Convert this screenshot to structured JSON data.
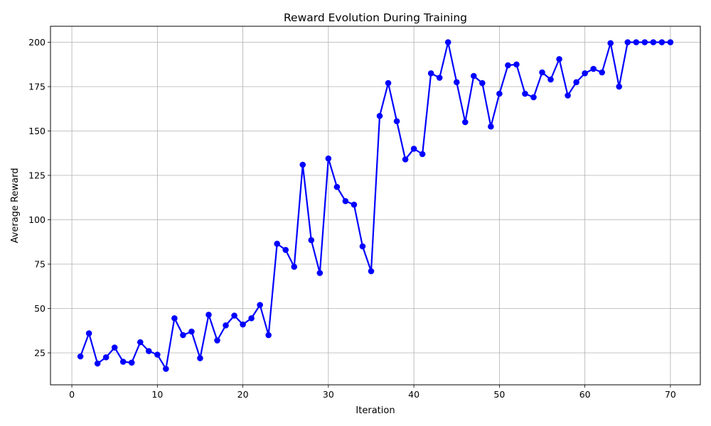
{
  "chart_data": {
    "type": "line",
    "title": "Reward Evolution During Training",
    "xlabel": "Iteration",
    "ylabel": "Average Reward",
    "xlim": [
      -2.5,
      73.5
    ],
    "ylim": [
      7,
      209
    ],
    "xticks": [
      0,
      10,
      20,
      30,
      40,
      50,
      60,
      70
    ],
    "yticks": [
      25,
      50,
      75,
      100,
      125,
      150,
      175,
      200
    ],
    "grid": true,
    "color": "#0000ff",
    "marker": "circle",
    "series": [
      {
        "x": [
          1,
          2,
          3,
          4,
          5,
          6,
          7,
          8,
          9,
          10,
          11,
          12,
          13,
          14,
          15,
          16,
          17,
          18,
          19,
          20,
          21,
          22,
          23,
          24,
          25,
          26,
          27,
          28,
          29,
          30,
          31,
          32,
          33,
          34,
          35,
          36,
          37,
          38,
          39,
          40,
          41,
          42,
          43,
          44,
          45,
          46,
          47,
          48,
          49,
          50,
          51,
          52,
          53,
          54,
          55,
          56,
          57,
          58,
          59,
          60,
          61,
          62,
          63,
          64,
          65,
          66,
          67,
          68,
          69,
          70
        ],
        "values": [
          23,
          36,
          19,
          22.5,
          28,
          20,
          19.5,
          31,
          26,
          24,
          16,
          44.5,
          35,
          37,
          22,
          46.5,
          32,
          40.5,
          46,
          41,
          44.5,
          52,
          35,
          86.5,
          83,
          73.5,
          131,
          88.5,
          70,
          134.5,
          118.5,
          110.5,
          108.5,
          85,
          71,
          158.5,
          177,
          155.5,
          134,
          140,
          137,
          182.5,
          180,
          200,
          177.5,
          155,
          181,
          177,
          152.5,
          171,
          187,
          187.5,
          171,
          169,
          183,
          179,
          190.5,
          170,
          177.5,
          182.5,
          185,
          183,
          199.5,
          175,
          200,
          200,
          200,
          200,
          200,
          200
        ]
      }
    ]
  }
}
